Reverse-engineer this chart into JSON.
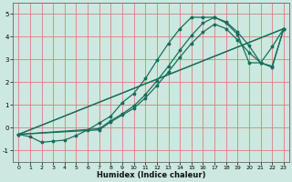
{
  "xlabel": "Humidex (Indice chaleur)",
  "bg_color": "#cce8e0",
  "grid_color": "#d88080",
  "line_color": "#1a6e5c",
  "xlim": [
    -0.5,
    23.5
  ],
  "ylim": [
    -1.5,
    5.5
  ],
  "yticks": [
    -1,
    0,
    1,
    2,
    3,
    4,
    5
  ],
  "xticks": [
    0,
    1,
    2,
    3,
    4,
    5,
    6,
    7,
    8,
    9,
    10,
    11,
    12,
    13,
    14,
    15,
    16,
    17,
    18,
    19,
    20,
    21,
    22,
    23
  ],
  "curve_x": [
    0,
    1,
    2,
    3,
    4,
    5,
    6,
    7,
    8,
    9,
    10,
    11,
    12,
    13,
    14,
    15,
    16,
    17,
    18,
    19,
    20,
    21,
    22,
    23
  ],
  "curve_y": [
    -0.3,
    -0.4,
    -0.65,
    -0.6,
    -0.55,
    -0.35,
    -0.1,
    0.2,
    0.5,
    1.1,
    1.5,
    2.15,
    2.95,
    3.7,
    4.35,
    4.85,
    4.85,
    4.85,
    4.6,
    4.1,
    2.85,
    2.85,
    2.7,
    4.35
  ],
  "line1_x": [
    0,
    23
  ],
  "line1_y": [
    -0.3,
    4.35
  ],
  "line2_x": [
    0,
    23
  ],
  "line2_y": [
    -0.3,
    4.35
  ],
  "line3_x": [
    0,
    7,
    8,
    9,
    10,
    11,
    12,
    13,
    14,
    15,
    16,
    17,
    18,
    19,
    20,
    21,
    22,
    23
  ],
  "line3_y": [
    -0.3,
    -0.1,
    0.25,
    0.55,
    0.85,
    1.3,
    1.85,
    2.45,
    3.1,
    3.7,
    4.2,
    4.55,
    4.35,
    3.85,
    3.3,
    2.85,
    3.55,
    4.35
  ],
  "line4_x": [
    0,
    7,
    8,
    9,
    10,
    11,
    12,
    13,
    14,
    15,
    16,
    17,
    18,
    19,
    20,
    21,
    22,
    23
  ],
  "line4_y": [
    -0.3,
    -0.05,
    0.3,
    0.6,
    0.95,
    1.45,
    2.05,
    2.7,
    3.4,
    4.05,
    4.6,
    4.85,
    4.65,
    4.2,
    3.6,
    2.85,
    2.65,
    4.35
  ]
}
